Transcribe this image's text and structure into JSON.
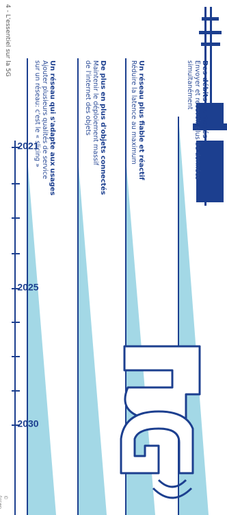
{
  "page_label": "4 - L'essentiel sur la 5G",
  "timeline": {
    "years": [
      "2021",
      "2025",
      "2030"
    ]
  },
  "tracks": [
    {
      "title": "Des débits partagés",
      "line1": "Envoyer et recevoir plus de données",
      "line2": "simultanément"
    },
    {
      "title": "Un réseau plus fiable et réactif",
      "line1": "Réduire la latence au maximum",
      "line2": ""
    },
    {
      "title": "De plus en plus d'objets connectés",
      "line1": "Maintenir le déploiement massif",
      "line2": "de l'internet des objets"
    },
    {
      "title": "Un réseau qui s'adapte aux usages",
      "line1": "Ajouter plusieurs qualités de service",
      "line2": "sur un réseau: c'est le « slicing »"
    }
  ],
  "logo_text": "5G",
  "credit": "© Arcep",
  "colors": {
    "navy": "#1c3f8f",
    "light_blue": "#a9dbe8",
    "wedge": "#8fd0e3"
  }
}
